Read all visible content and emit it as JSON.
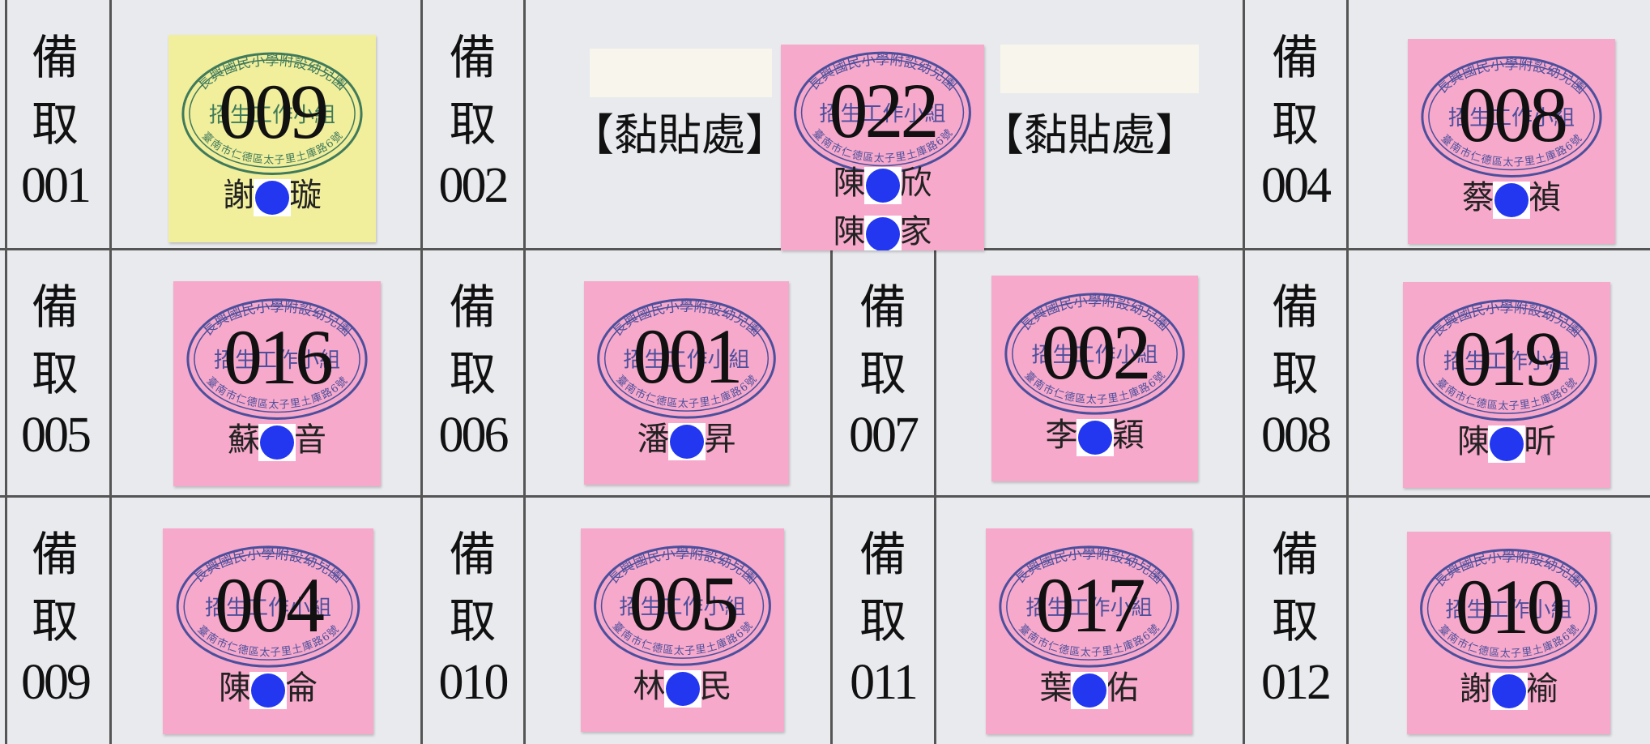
{
  "stamp": {
    "school": "長興國民小學附設幼兒園",
    "group": "招生工作小組",
    "address": "臺南市仁德區太子里土庫路6號"
  },
  "paste_label": "【黏貼處】",
  "slots": [
    {
      "prefix": "備取",
      "number": "001"
    },
    {
      "prefix": "備取",
      "number": "002"
    },
    {
      "prefix": "備取",
      "number": "004"
    },
    {
      "prefix": "備取",
      "number": "005"
    },
    {
      "prefix": "備取",
      "number": "006"
    },
    {
      "prefix": "備取",
      "number": "007"
    },
    {
      "prefix": "備取",
      "number": "008"
    },
    {
      "prefix": "備取",
      "number": "009"
    },
    {
      "prefix": "備取",
      "number": "010"
    },
    {
      "prefix": "備取",
      "number": "011"
    },
    {
      "prefix": "備取",
      "number": "012"
    }
  ],
  "stickers": [
    {
      "number": "009",
      "color": "#f1ee9c",
      "names": [
        {
          "surname": "謝",
          "given": "璇"
        }
      ]
    },
    {
      "number": "022",
      "color": "#f7a9cb",
      "names": [
        {
          "surname": "陳",
          "given": "欣"
        },
        {
          "surname": "陳",
          "given": "家"
        }
      ]
    },
    {
      "number": "008",
      "color": "#f7a9cb",
      "names": [
        {
          "surname": "蔡",
          "given": "禎"
        }
      ]
    },
    {
      "number": "016",
      "color": "#f7a9cb",
      "names": [
        {
          "surname": "蘇",
          "given": "音"
        }
      ]
    },
    {
      "number": "001",
      "color": "#f7a9cb",
      "names": [
        {
          "surname": "潘",
          "given": "昇"
        }
      ]
    },
    {
      "number": "002",
      "color": "#f7a9cb",
      "names": [
        {
          "surname": "李",
          "given": "穎"
        }
      ]
    },
    {
      "number": "019",
      "color": "#f7a9cb",
      "names": [
        {
          "surname": "陳",
          "given": "昕"
        }
      ]
    },
    {
      "number": "004",
      "color": "#f7a9cb",
      "names": [
        {
          "surname": "陳",
          "given": "侖"
        }
      ]
    },
    {
      "number": "005",
      "color": "#f7a9cb",
      "names": [
        {
          "surname": "林",
          "given": "民"
        }
      ]
    },
    {
      "number": "017",
      "color": "#f7a9cb",
      "names": [
        {
          "surname": "葉",
          "given": "佑"
        }
      ]
    },
    {
      "number": "010",
      "color": "#f7a9cb",
      "names": [
        {
          "surname": "謝",
          "given": "褕"
        }
      ]
    }
  ]
}
